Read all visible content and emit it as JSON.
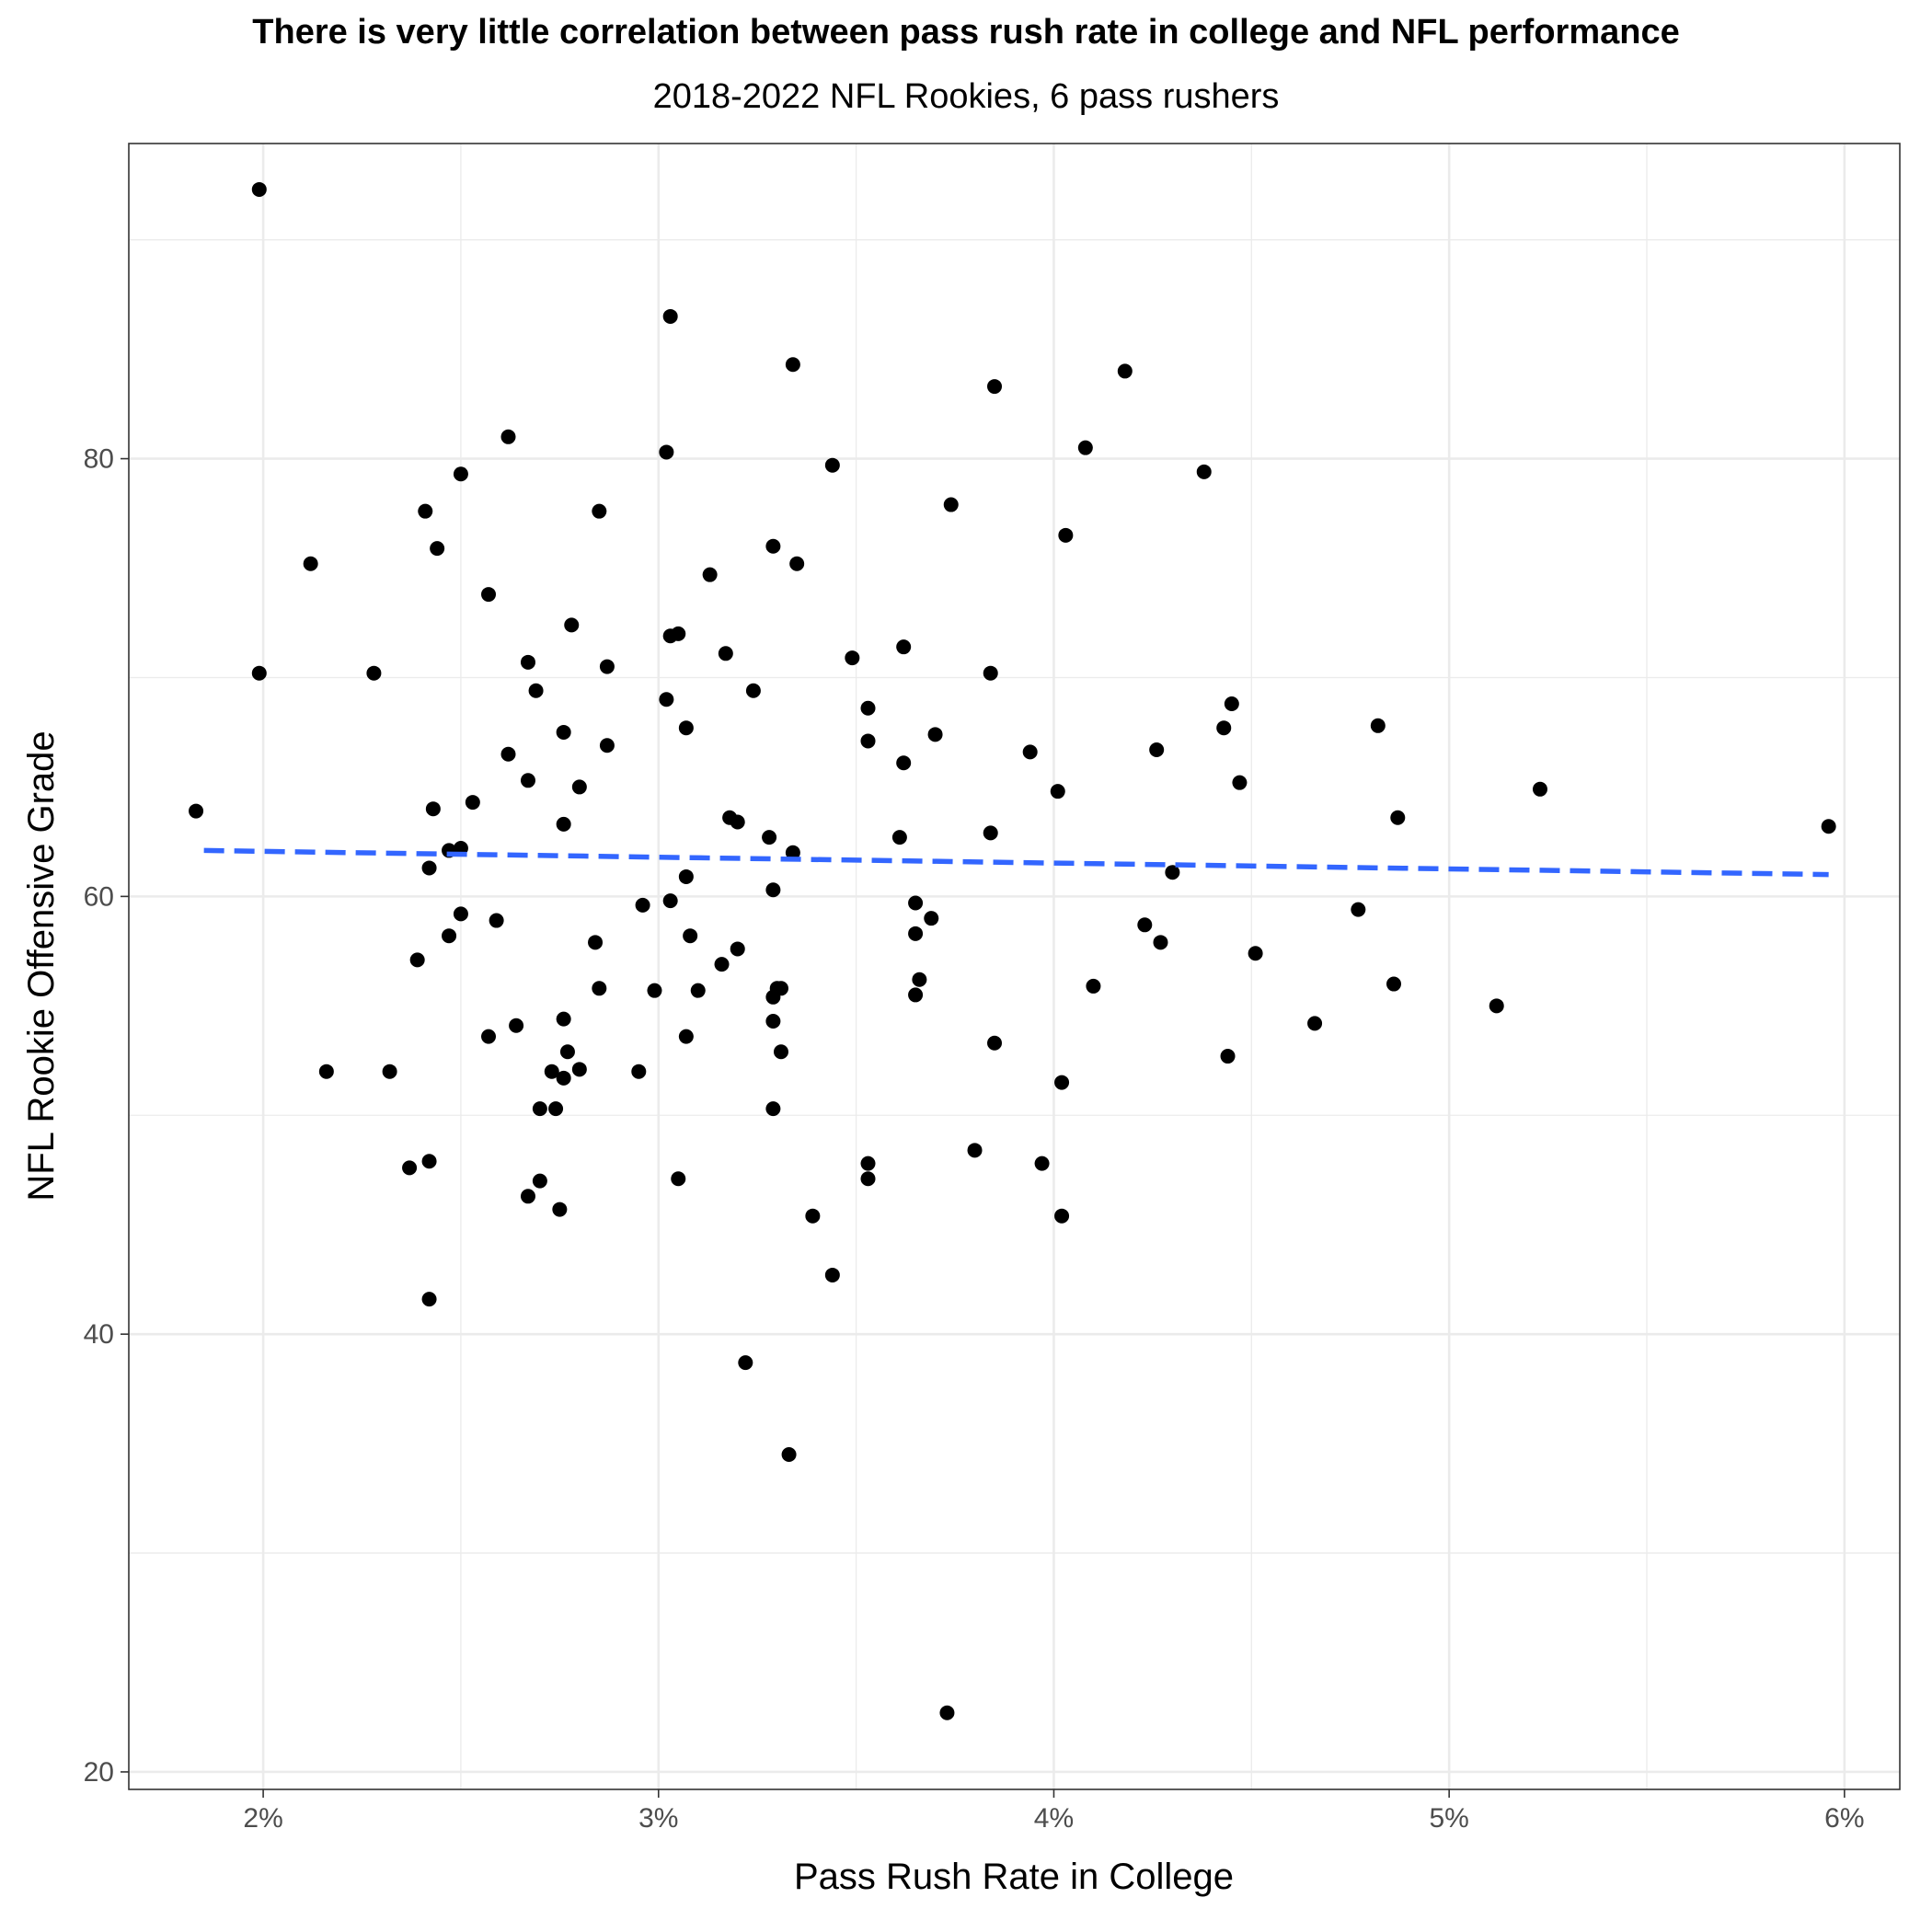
{
  "chart_data": {
    "type": "scatter",
    "title": "There is very little correlation between pass rush rate in college and NFL performance",
    "subtitle": "2018-2022 NFL Rookies, 6 pass rushers",
    "xlabel": "Pass Rush Rate in College",
    "ylabel": "NFL Rookie Offensive Grade",
    "xlim": [
      0.0166,
      0.0614
    ],
    "ylim": [
      19.2,
      94.4
    ],
    "x_ticks": [
      0.02,
      0.03,
      0.04,
      0.05,
      0.06
    ],
    "x_tick_labels": [
      "2%",
      "3%",
      "4%",
      "5%",
      "6%"
    ],
    "y_ticks": [
      20,
      40,
      60,
      80
    ],
    "y_tick_labels": [
      "20",
      "40",
      "60",
      "80"
    ],
    "grid": true,
    "legend": "none",
    "point_color": "#000000",
    "trend_line_color": "#3366FF",
    "trend_line": {
      "style": "dashed",
      "x": [
        0.0185,
        0.0596
      ],
      "y": [
        62.1,
        61.0
      ]
    },
    "series": [
      {
        "points": [
          [
            0.0199,
            92.3
          ],
          [
            0.0303,
            86.5
          ],
          [
            0.0334,
            84.3
          ],
          [
            0.0385,
            83.3
          ],
          [
            0.0418,
            84.0
          ],
          [
            0.0262,
            81.0
          ],
          [
            0.0302,
            80.3
          ],
          [
            0.025,
            79.3
          ],
          [
            0.0344,
            79.7
          ],
          [
            0.0408,
            80.5
          ],
          [
            0.0438,
            79.4
          ],
          [
            0.0241,
            77.6
          ],
          [
            0.0285,
            77.6
          ],
          [
            0.0374,
            77.9
          ],
          [
            0.0403,
            76.5
          ],
          [
            0.0212,
            75.2
          ],
          [
            0.0244,
            75.9
          ],
          [
            0.0329,
            76.0
          ],
          [
            0.0335,
            75.2
          ],
          [
            0.0313,
            74.7
          ],
          [
            0.0257,
            73.8
          ],
          [
            0.0278,
            72.4
          ],
          [
            0.0303,
            71.9
          ],
          [
            0.0305,
            72.0
          ],
          [
            0.0317,
            71.1
          ],
          [
            0.0362,
            71.4
          ],
          [
            0.0199,
            70.2
          ],
          [
            0.0228,
            70.2
          ],
          [
            0.0267,
            70.7
          ],
          [
            0.0287,
            70.5
          ],
          [
            0.0349,
            70.9
          ],
          [
            0.0384,
            70.2
          ],
          [
            0.0269,
            69.4
          ],
          [
            0.0302,
            69.0
          ],
          [
            0.0324,
            69.4
          ],
          [
            0.0353,
            68.6
          ],
          [
            0.0445,
            68.8
          ],
          [
            0.0276,
            67.5
          ],
          [
            0.0307,
            67.7
          ],
          [
            0.037,
            67.4
          ],
          [
            0.0443,
            67.7
          ],
          [
            0.0482,
            67.8
          ],
          [
            0.0287,
            66.9
          ],
          [
            0.0353,
            67.1
          ],
          [
            0.0262,
            66.5
          ],
          [
            0.0362,
            66.1
          ],
          [
            0.0394,
            66.6
          ],
          [
            0.0426,
            66.7
          ],
          [
            0.0267,
            65.3
          ],
          [
            0.028,
            65.0
          ],
          [
            0.0401,
            64.8
          ],
          [
            0.0447,
            65.2
          ],
          [
            0.0523,
            64.9
          ],
          [
            0.0253,
            64.3
          ],
          [
            0.0243,
            64.0
          ],
          [
            0.0183,
            63.9
          ],
          [
            0.0318,
            63.6
          ],
          [
            0.032,
            63.4
          ],
          [
            0.0276,
            63.3
          ],
          [
            0.0487,
            63.6
          ],
          [
            0.0596,
            63.2
          ],
          [
            0.0384,
            62.9
          ],
          [
            0.0328,
            62.7
          ],
          [
            0.0361,
            62.7
          ],
          [
            0.0247,
            62.1
          ],
          [
            0.025,
            62.2
          ],
          [
            0.0334,
            62.0
          ],
          [
            0.0242,
            61.3
          ],
          [
            0.0307,
            60.9
          ],
          [
            0.043,
            61.1
          ],
          [
            0.0329,
            60.3
          ],
          [
            0.0303,
            59.8
          ],
          [
            0.0296,
            59.6
          ],
          [
            0.0365,
            59.7
          ],
          [
            0.0477,
            59.4
          ],
          [
            0.025,
            59.2
          ],
          [
            0.0259,
            58.9
          ],
          [
            0.0369,
            59.0
          ],
          [
            0.0423,
            58.7
          ],
          [
            0.0247,
            58.2
          ],
          [
            0.0308,
            58.2
          ],
          [
            0.0365,
            58.3
          ],
          [
            0.0284,
            57.9
          ],
          [
            0.0427,
            57.9
          ],
          [
            0.032,
            57.6
          ],
          [
            0.0239,
            57.1
          ],
          [
            0.0316,
            56.9
          ],
          [
            0.0451,
            57.4
          ],
          [
            0.0285,
            55.8
          ],
          [
            0.0299,
            55.7
          ],
          [
            0.031,
            55.7
          ],
          [
            0.033,
            55.8
          ],
          [
            0.0331,
            55.8
          ],
          [
            0.0366,
            56.2
          ],
          [
            0.041,
            55.9
          ],
          [
            0.0486,
            56.0
          ],
          [
            0.0329,
            55.4
          ],
          [
            0.0365,
            55.5
          ],
          [
            0.0512,
            55.0
          ],
          [
            0.0276,
            54.4
          ],
          [
            0.0329,
            54.3
          ],
          [
            0.0264,
            54.1
          ],
          [
            0.0466,
            54.2
          ],
          [
            0.0257,
            53.6
          ],
          [
            0.0307,
            53.6
          ],
          [
            0.0385,
            53.3
          ],
          [
            0.0277,
            52.9
          ],
          [
            0.0331,
            52.9
          ],
          [
            0.0444,
            52.7
          ],
          [
            0.0216,
            52.0
          ],
          [
            0.0232,
            52.0
          ],
          [
            0.0273,
            52.0
          ],
          [
            0.028,
            52.1
          ],
          [
            0.0295,
            52.0
          ],
          [
            0.0276,
            51.7
          ],
          [
            0.0402,
            51.5
          ],
          [
            0.027,
            50.3
          ],
          [
            0.0274,
            50.3
          ],
          [
            0.0329,
            50.3
          ],
          [
            0.038,
            48.4
          ],
          [
            0.0353,
            47.8
          ],
          [
            0.0397,
            47.8
          ],
          [
            0.0237,
            47.6
          ],
          [
            0.0242,
            47.9
          ],
          [
            0.027,
            47.0
          ],
          [
            0.0305,
            47.1
          ],
          [
            0.0353,
            47.1
          ],
          [
            0.0267,
            46.3
          ],
          [
            0.0275,
            45.7
          ],
          [
            0.0339,
            45.4
          ],
          [
            0.0402,
            45.4
          ],
          [
            0.0344,
            42.7
          ],
          [
            0.0242,
            41.6
          ],
          [
            0.0322,
            38.7
          ],
          [
            0.0333,
            34.5
          ],
          [
            0.0373,
            22.7
          ]
        ]
      }
    ]
  }
}
